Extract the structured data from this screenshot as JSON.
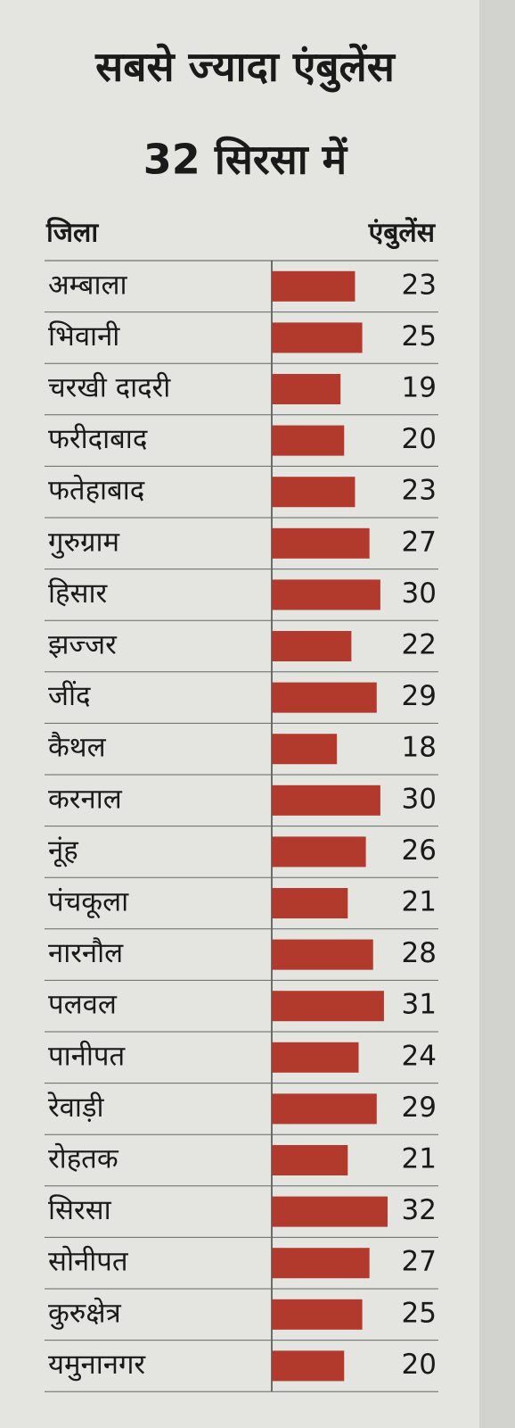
{
  "chart_data": {
    "type": "bar",
    "orientation": "horizontal",
    "title": "सबसे ज्यादा एंबुलेंस",
    "subtitle": "32 सिरसा में",
    "category_header": "जिला",
    "value_header": "एंबुलेंस",
    "categories": [
      "अम्बाला",
      "भिवानी",
      "चरखी दादरी",
      "फरीदाबाद",
      "फतेहाबाद",
      "गुरुग्राम",
      "हिसार",
      "झज्जर",
      "जींद",
      "कैथल",
      "करनाल",
      "नूंह",
      "पंचकूला",
      "नारनौल",
      "पलवल",
      "पानीपत",
      "रेवाड़ी",
      "रोहतक",
      "सिरसा",
      "सोनीपत",
      "कुरुक्षेत्र",
      "यमुनानगर"
    ],
    "values": [
      23,
      25,
      19,
      20,
      23,
      27,
      30,
      22,
      29,
      18,
      30,
      26,
      21,
      28,
      31,
      24,
      29,
      21,
      32,
      27,
      25,
      20
    ],
    "color": "#b23a2c"
  }
}
